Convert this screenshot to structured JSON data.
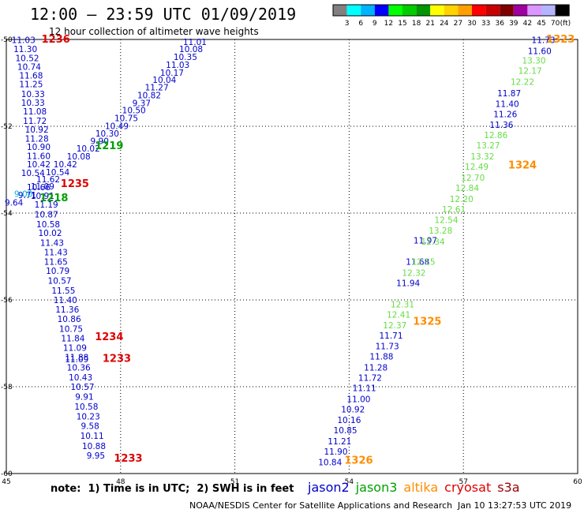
{
  "header": {
    "title": "12:00 – 23:59 UTC 01/09/2019",
    "subtitle": "12 hour collection of altimeter wave heights"
  },
  "colorbar": {
    "unit_label": "(ft)",
    "ticks": [
      "3",
      "6",
      "9",
      "12",
      "15",
      "18",
      "21",
      "24",
      "27",
      "30",
      "33",
      "36",
      "39",
      "42",
      "45",
      "70"
    ],
    "colors": [
      "#808080",
      "#00ffff",
      "#00b4ff",
      "#0000ff",
      "#00ff00",
      "#00cc00",
      "#009600",
      "#ffff00",
      "#ffd200",
      "#ffa000",
      "#ff0000",
      "#c80000",
      "#800000",
      "#a000a0",
      "#dc96ff",
      "#b4b4ff",
      "#000000"
    ]
  },
  "chart_data": {
    "type": "scatter",
    "xlim": [
      45,
      60
    ],
    "ylim": [
      -60,
      -50
    ],
    "x_ticks": [
      "45",
      "48",
      "51",
      "54",
      "57",
      "60"
    ],
    "y_ticks": [
      "-50",
      "-52",
      "-54",
      "-56",
      "-58",
      "-60"
    ],
    "grid": true,
    "colors": {
      "jason2": "#0000cc",
      "jason3": "#00a000",
      "altika": "#ff8c00",
      "cryosat": "#dd0000",
      "light_green": "#66dd44",
      "cyan": "#00b4dc"
    },
    "series": [
      {
        "name": "jason2",
        "color_key": "jason2",
        "points": [
          {
            "lon": 45.45,
            "lat": -50.01,
            "label": "11.03"
          },
          {
            "lon": 45.5,
            "lat": -50.22,
            "label": "11.30"
          },
          {
            "lon": 45.55,
            "lat": -50.43,
            "label": "10.52"
          },
          {
            "lon": 45.6,
            "lat": -50.63,
            "label": "10.74"
          },
          {
            "lon": 45.65,
            "lat": -50.83,
            "label": "11.68"
          },
          {
            "lon": 45.65,
            "lat": -51.03,
            "label": "11.25"
          },
          {
            "lon": 45.7,
            "lat": -51.25,
            "label": "10.33"
          },
          {
            "lon": 45.7,
            "lat": -51.45,
            "label": "10.33"
          },
          {
            "lon": 45.75,
            "lat": -51.65,
            "label": "11.08"
          },
          {
            "lon": 45.75,
            "lat": -51.87,
            "label": "11.72"
          },
          {
            "lon": 45.8,
            "lat": -52.07,
            "label": "10.92"
          },
          {
            "lon": 45.8,
            "lat": -52.28,
            "label": "11.28"
          },
          {
            "lon": 45.85,
            "lat": -52.47,
            "label": "10.90"
          },
          {
            "lon": 45.85,
            "lat": -52.68,
            "label": "11.60"
          },
          {
            "lon": 45.85,
            "lat": -52.87,
            "label": "10.42"
          },
          {
            "lon": 45.7,
            "lat": -53.07,
            "label": "10.54"
          },
          {
            "lon": 45.95,
            "lat": -53.38,
            "label": "11.09"
          },
          {
            "lon": 45.95,
            "lat": -53.6,
            "label": "10.91"
          },
          {
            "lon": 46.05,
            "lat": -53.8,
            "label": "11.19"
          },
          {
            "lon": 46.05,
            "lat": -54.03,
            "label": "10.87"
          },
          {
            "lon": 46.1,
            "lat": -54.25,
            "label": "10.58"
          },
          {
            "lon": 46.15,
            "lat": -54.45,
            "label": "10.02"
          },
          {
            "lon": 46.2,
            "lat": -54.68,
            "label": "11.43"
          },
          {
            "lon": 46.3,
            "lat": -54.9,
            "label": "11.43"
          },
          {
            "lon": 46.3,
            "lat": -55.12,
            "label": "11.65"
          },
          {
            "lon": 46.35,
            "lat": -55.33,
            "label": "10.79"
          },
          {
            "lon": 46.4,
            "lat": -55.55,
            "label": "10.57"
          },
          {
            "lon": 46.5,
            "lat": -55.78,
            "label": "11.55"
          },
          {
            "lon": 46.55,
            "lat": -56.0,
            "label": "11.40"
          },
          {
            "lon": 46.6,
            "lat": -56.22,
            "label": "11.36"
          },
          {
            "lon": 46.65,
            "lat": -56.44,
            "label": "10.86"
          },
          {
            "lon": 46.7,
            "lat": -56.66,
            "label": "10.75"
          },
          {
            "lon": 46.75,
            "lat": -56.88,
            "label": "11.84"
          },
          {
            "lon": 46.8,
            "lat": -57.1,
            "label": "11.09"
          },
          {
            "lon": 46.85,
            "lat": -57.32,
            "label": "11.88"
          },
          {
            "lon": 46.85,
            "lat": -57.36,
            "label": "11.09"
          },
          {
            "lon": 46.9,
            "lat": -57.55,
            "label": "10.36"
          },
          {
            "lon": 46.95,
            "lat": -57.78,
            "label": "10.43"
          },
          {
            "lon": 47.0,
            "lat": -58.0,
            "label": "10.57"
          },
          {
            "lon": 47.05,
            "lat": -58.23,
            "label": "9.91"
          },
          {
            "lon": 47.1,
            "lat": -58.45,
            "label": "10.58"
          },
          {
            "lon": 47.15,
            "lat": -58.68,
            "label": "10.23"
          },
          {
            "lon": 47.2,
            "lat": -58.9,
            "label": "9.58"
          },
          {
            "lon": 47.25,
            "lat": -59.13,
            "label": "10.11"
          },
          {
            "lon": 47.3,
            "lat": -59.36,
            "label": "10.88"
          },
          {
            "lon": 47.35,
            "lat": -59.58,
            "label": "9.95"
          },
          {
            "lon": 49.95,
            "lat": -50.05,
            "label": "11.01"
          },
          {
            "lon": 49.85,
            "lat": -50.22,
            "label": "10.08"
          },
          {
            "lon": 49.7,
            "lat": -50.4,
            "label": "10.35"
          },
          {
            "lon": 49.5,
            "lat": -50.58,
            "label": "11.03"
          },
          {
            "lon": 49.35,
            "lat": -50.76,
            "label": "10.17"
          },
          {
            "lon": 49.15,
            "lat": -50.93,
            "label": "10.04"
          },
          {
            "lon": 48.95,
            "lat": -51.1,
            "label": "11.27"
          },
          {
            "lon": 48.75,
            "lat": -51.28,
            "label": "10.82"
          },
          {
            "lon": 48.55,
            "lat": -51.46,
            "label": "9.37"
          },
          {
            "lon": 48.35,
            "lat": -51.63,
            "label": "10.50"
          },
          {
            "lon": 48.15,
            "lat": -51.81,
            "label": "10.75"
          },
          {
            "lon": 47.9,
            "lat": -51.99,
            "label": "10.49"
          },
          {
            "lon": 47.65,
            "lat": -52.16,
            "label": "10.30"
          },
          {
            "lon": 47.45,
            "lat": -52.34,
            "label": "9.90"
          },
          {
            "lon": 47.15,
            "lat": -52.51,
            "label": "10.02"
          },
          {
            "lon": 46.9,
            "lat": -52.69,
            "label": "10.08"
          },
          {
            "lon": 46.55,
            "lat": -52.87,
            "label": "10.42"
          },
          {
            "lon": 46.35,
            "lat": -53.05,
            "label": "10.54"
          },
          {
            "lon": 46.1,
            "lat": -53.22,
            "label": "11.62"
          },
          {
            "lon": 45.85,
            "lat": -53.4,
            "label": "10.66"
          },
          {
            "lon": 45.55,
            "lat": -53.58,
            "label": "9.71"
          },
          {
            "lon": 45.2,
            "lat": -53.75,
            "label": "9.64"
          },
          {
            "lon": 59.1,
            "lat": -50.01,
            "label": "11.73"
          },
          {
            "lon": 59.0,
            "lat": -50.26,
            "label": "11.60"
          },
          {
            "lon": 58.2,
            "lat": -51.24,
            "label": "11.87"
          },
          {
            "lon": 58.15,
            "lat": -51.48,
            "label": "11.40"
          },
          {
            "lon": 58.1,
            "lat": -51.72,
            "label": "11.26"
          },
          {
            "lon": 58.0,
            "lat": -51.96,
            "label": "11.36"
          },
          {
            "lon": 56.0,
            "lat": -54.63,
            "label": "11.97"
          },
          {
            "lon": 55.8,
            "lat": -55.12,
            "label": "11.68"
          },
          {
            "lon": 55.55,
            "lat": -55.61,
            "label": "11.94"
          },
          {
            "lon": 55.1,
            "lat": -56.82,
            "label": "11.71"
          },
          {
            "lon": 55.0,
            "lat": -57.06,
            "label": "11.73"
          },
          {
            "lon": 54.85,
            "lat": -57.3,
            "label": "11.88"
          },
          {
            "lon": 54.7,
            "lat": -57.55,
            "label": "11.28"
          },
          {
            "lon": 54.55,
            "lat": -57.79,
            "label": "11.72"
          },
          {
            "lon": 54.4,
            "lat": -58.03,
            "label": "11.11"
          },
          {
            "lon": 54.25,
            "lat": -58.28,
            "label": "11.00"
          },
          {
            "lon": 54.1,
            "lat": -58.52,
            "label": "10.92"
          },
          {
            "lon": 54.0,
            "lat": -58.76,
            "label": "10.16"
          },
          {
            "lon": 53.9,
            "lat": -59.0,
            "label": "10.85"
          },
          {
            "lon": 53.75,
            "lat": -59.25,
            "label": "11.21"
          },
          {
            "lon": 53.65,
            "lat": -59.49,
            "label": "11.90"
          },
          {
            "lon": 53.5,
            "lat": -59.74,
            "label": "10.84"
          }
        ]
      },
      {
        "name": "jason3",
        "color_key": "light_green",
        "points": [
          {
            "lon": 58.85,
            "lat": -50.48,
            "label": "13.30"
          },
          {
            "lon": 58.75,
            "lat": -50.72,
            "label": "12.17"
          },
          {
            "lon": 58.55,
            "lat": -50.97,
            "label": "12.22"
          },
          {
            "lon": 57.85,
            "lat": -52.2,
            "label": "12.86"
          },
          {
            "lon": 57.65,
            "lat": -52.44,
            "label": "13.27"
          },
          {
            "lon": 57.5,
            "lat": -52.69,
            "label": "13.32"
          },
          {
            "lon": 57.35,
            "lat": -52.93,
            "label": "12.49"
          },
          {
            "lon": 57.25,
            "lat": -53.18,
            "label": "12.70"
          },
          {
            "lon": 57.1,
            "lat": -53.42,
            "label": "12.84"
          },
          {
            "lon": 56.95,
            "lat": -53.67,
            "label": "12.20"
          },
          {
            "lon": 56.75,
            "lat": -53.91,
            "label": "12.61"
          },
          {
            "lon": 56.55,
            "lat": -54.15,
            "label": "12.54"
          },
          {
            "lon": 56.4,
            "lat": -54.4,
            "label": "13.28"
          },
          {
            "lon": 56.2,
            "lat": -54.65,
            "label": "12.34"
          },
          {
            "lon": 55.95,
            "lat": -55.12,
            "label": "12.15"
          },
          {
            "lon": 55.7,
            "lat": -55.37,
            "label": "12.32"
          },
          {
            "lon": 55.4,
            "lat": -56.1,
            "label": "12.31"
          },
          {
            "lon": 55.3,
            "lat": -56.34,
            "label": "12.41"
          },
          {
            "lon": 55.2,
            "lat": -56.58,
            "label": "12.37"
          }
        ]
      },
      {
        "name": "cyan",
        "color_key": "cyan",
        "points": [
          {
            "lon": 45.45,
            "lat": -53.55,
            "label": "9.00"
          }
        ]
      },
      {
        "name": "passes",
        "color_key": "mixed",
        "points": [
          {
            "lon": 46.3,
            "lat": -50.0,
            "label": "1236",
            "color_key": "cryosat"
          },
          {
            "lon": 47.7,
            "lat": -52.45,
            "label": "1219",
            "color_key": "jason3"
          },
          {
            "lon": 46.8,
            "lat": -53.33,
            "label": "1235",
            "color_key": "cryosat"
          },
          {
            "lon": 46.25,
            "lat": -53.65,
            "label": "1218",
            "color_key": "jason3"
          },
          {
            "lon": 47.7,
            "lat": -56.85,
            "label": "1234",
            "color_key": "cryosat"
          },
          {
            "lon": 47.9,
            "lat": -57.35,
            "label": "1233",
            "color_key": "cryosat"
          },
          {
            "lon": 48.2,
            "lat": -59.65,
            "label": "1233",
            "color_key": "cryosat"
          },
          {
            "lon": 59.55,
            "lat": -50.0,
            "label": "1323",
            "color_key": "altika"
          },
          {
            "lon": 58.55,
            "lat": -52.9,
            "label": "1324",
            "color_key": "altika"
          },
          {
            "lon": 56.05,
            "lat": -56.5,
            "label": "1325",
            "color_key": "altika"
          },
          {
            "lon": 54.25,
            "lat": -59.7,
            "label": "1326",
            "color_key": "altika"
          }
        ]
      }
    ]
  },
  "footer": {
    "note": "note:  1) Time is in UTC;  2) SWH is in feet",
    "legend": [
      {
        "label": "jason2",
        "color": "#0000cc"
      },
      {
        "label": "jason3",
        "color": "#00a000"
      },
      {
        "label": "altika",
        "color": "#ff8c00"
      },
      {
        "label": "cryosat",
        "color": "#dd0000"
      },
      {
        "label": "s3a",
        "color": "#990000"
      }
    ],
    "credit": "NOAA/NESDIS Center for Satellite Applications and Research",
    "timestamp": "Jan 10 13:27:53 UTC 2019"
  }
}
